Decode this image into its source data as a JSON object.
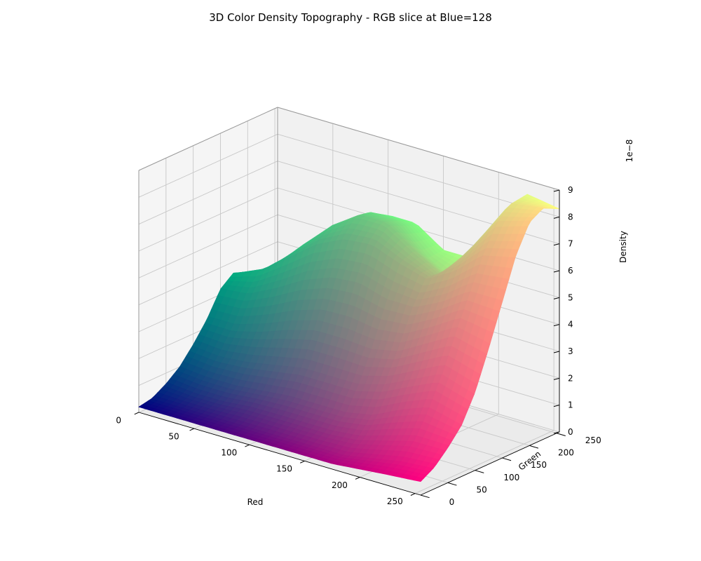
{
  "chart_data": {
    "type": "surface",
    "title": "3D Color Density Topography - RGB slice at Blue=128",
    "xlabel": "Red",
    "ylabel": "Green",
    "zlabel": "Density",
    "z_offset_label": "1e−8",
    "xlim": [
      0,
      255
    ],
    "ylim": [
      0,
      255
    ],
    "zlim": [
      0,
      9
    ],
    "x_ticks": [
      "0",
      "50",
      "100",
      "150",
      "200",
      "250"
    ],
    "y_ticks": [
      "0",
      "50",
      "100",
      "150",
      "200",
      "250"
    ],
    "z_ticks": [
      "0",
      "1",
      "2",
      "3",
      "4",
      "5",
      "6",
      "7",
      "8",
      "9"
    ],
    "grid": true,
    "blue_slice": 128,
    "surface_color": "rgb(red, green, blue=128)",
    "red": [
      0,
      25,
      50,
      75,
      100,
      125,
      150,
      175,
      200,
      225,
      255
    ],
    "green": [
      0,
      25,
      50,
      75,
      100,
      125,
      150,
      175,
      200,
      225,
      255
    ],
    "density": [
      [
        0.2,
        0.3,
        0.6,
        1.0,
        1.6,
        2.3,
        3.2,
        3.6,
        3.2,
        2.6,
        2.0
      ],
      [
        0.2,
        0.3,
        0.5,
        0.9,
        1.5,
        2.3,
        3.3,
        4.0,
        3.9,
        3.5,
        3.0
      ],
      [
        0.2,
        0.3,
        0.5,
        0.9,
        1.6,
        2.6,
        3.8,
        4.8,
        5.0,
        4.8,
        4.4
      ],
      [
        0.2,
        0.3,
        0.6,
        1.0,
        1.8,
        3.0,
        4.4,
        5.6,
        6.0,
        5.9,
        5.5
      ],
      [
        0.2,
        0.3,
        0.6,
        1.1,
        2.0,
        3.3,
        4.8,
        6.1,
        6.7,
        6.6,
        6.2
      ],
      [
        0.2,
        0.3,
        0.6,
        1.1,
        2.0,
        3.3,
        4.9,
        6.2,
        6.7,
        6.5,
        6.2
      ],
      [
        0.2,
        0.3,
        0.6,
        1.1,
        2.0,
        3.2,
        4.6,
        5.8,
        6.0,
        5.5,
        5.5
      ],
      [
        0.2,
        0.3,
        0.7,
        1.3,
        2.3,
        3.4,
        4.6,
        5.5,
        5.4,
        4.9,
        5.5
      ],
      [
        0.3,
        0.5,
        1.0,
        1.8,
        2.8,
        4.0,
        5.1,
        6.1,
        6.6,
        6.9,
        7.3
      ],
      [
        0.4,
        0.7,
        1.3,
        2.2,
        3.3,
        4.6,
        5.8,
        7.0,
        7.9,
        8.4,
        8.5
      ],
      [
        0.5,
        0.8,
        1.3,
        1.9,
        2.9,
        4.3,
        5.8,
        7.3,
        8.3,
        8.6,
        8.3
      ]
    ]
  }
}
